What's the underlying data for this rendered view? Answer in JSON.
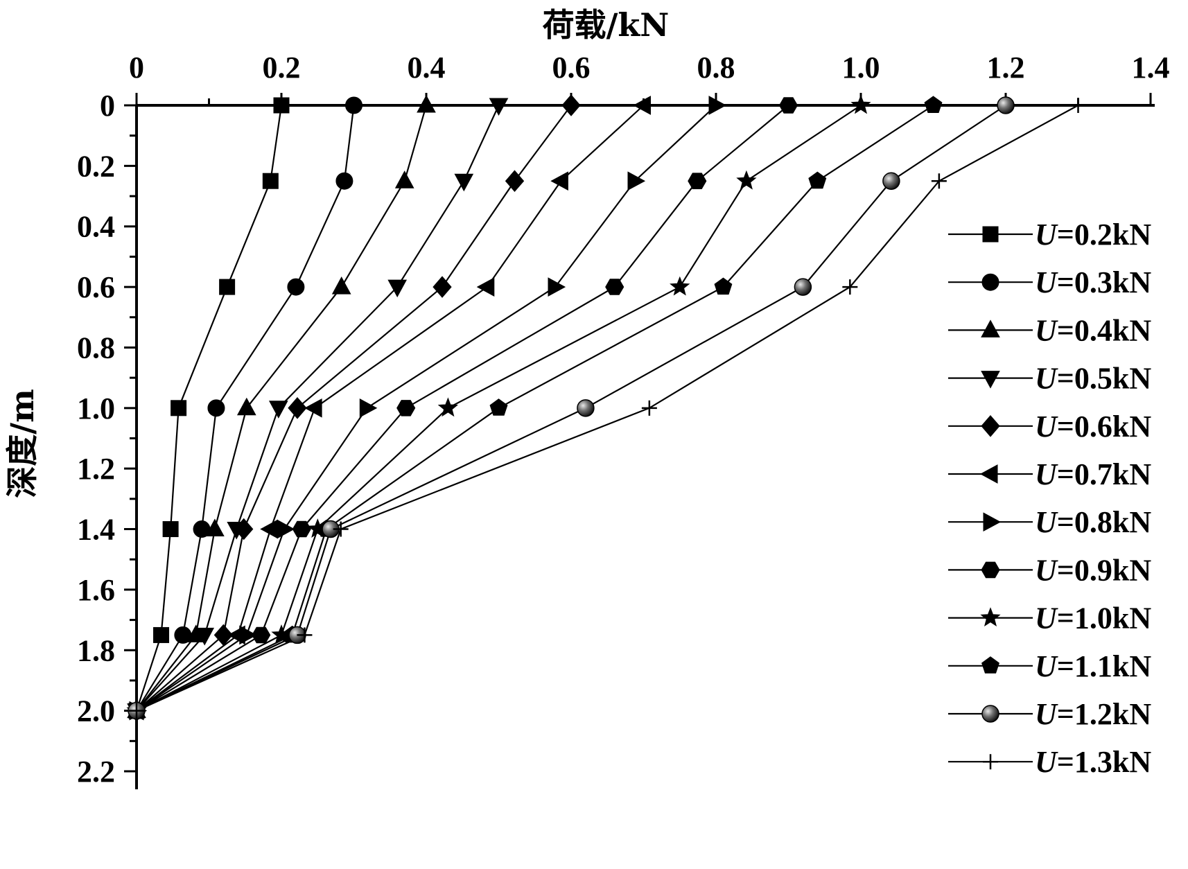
{
  "chart_data": {
    "type": "line",
    "xlabel": "荷载/kN",
    "ylabel": "深度/m",
    "x_axis_position": "top",
    "y_axis_inverted": true,
    "xlim": [
      0,
      1.4
    ],
    "ylim": [
      0,
      2.2
    ],
    "x_ticks": [
      0,
      0.2,
      0.4,
      0.6,
      0.8,
      1.0,
      1.2,
      1.4
    ],
    "x_tick_labels": [
      "0",
      "0.2",
      "0.4",
      "0.6",
      "0.8",
      "1.0",
      "1.2",
      "1.4"
    ],
    "y_ticks": [
      0,
      0.2,
      0.4,
      0.6,
      0.8,
      1.0,
      1.2,
      1.4,
      1.6,
      1.8,
      2.0,
      2.2
    ],
    "y_tick_labels": [
      "0",
      "0.2",
      "0.4",
      "0.6",
      "0.8",
      "1.0",
      "1.2",
      "1.4",
      "1.6",
      "1.8",
      "2.0",
      "2.2"
    ],
    "grid": false,
    "legend_position": "right",
    "depths": [
      0,
      0.25,
      0.6,
      1.0,
      1.4,
      1.75,
      2.0
    ],
    "series": [
      {
        "name_prefix": "U",
        "name_suffix": "=0.2kN",
        "marker": "square",
        "x": [
          0.2,
          0.185,
          0.125,
          0.058,
          0.047,
          0.034,
          0
        ]
      },
      {
        "name_prefix": "U",
        "name_suffix": "=0.3kN",
        "marker": "circle",
        "x": [
          0.3,
          0.287,
          0.22,
          0.11,
          0.09,
          0.064,
          0
        ]
      },
      {
        "name_prefix": "U",
        "name_suffix": "=0.4kN",
        "marker": "triangle-up",
        "x": [
          0.4,
          0.37,
          0.283,
          0.152,
          0.108,
          0.082,
          0
        ]
      },
      {
        "name_prefix": "U",
        "name_suffix": "=0.5kN",
        "marker": "triangle-down",
        "x": [
          0.5,
          0.452,
          0.36,
          0.196,
          0.138,
          0.094,
          0
        ]
      },
      {
        "name_prefix": "U",
        "name_suffix": "=0.6kN",
        "marker": "diamond",
        "x": [
          0.6,
          0.522,
          0.422,
          0.222,
          0.148,
          0.12,
          0
        ]
      },
      {
        "name_prefix": "U",
        "name_suffix": "=0.7kN",
        "marker": "triangle-left",
        "x": [
          0.7,
          0.586,
          0.484,
          0.246,
          0.185,
          0.14,
          0
        ]
      },
      {
        "name_prefix": "U",
        "name_suffix": "=0.8kN",
        "marker": "triangle-right",
        "x": [
          0.8,
          0.688,
          0.578,
          0.318,
          0.204,
          0.152,
          0
        ]
      },
      {
        "name_prefix": "U",
        "name_suffix": "=0.9kN",
        "marker": "hexagon",
        "x": [
          0.9,
          0.774,
          0.66,
          0.372,
          0.228,
          0.172,
          0
        ]
      },
      {
        "name_prefix": "U",
        "name_suffix": "=1.0kN",
        "marker": "star",
        "x": [
          1.0,
          0.842,
          0.75,
          0.43,
          0.25,
          0.2,
          0
        ]
      },
      {
        "name_prefix": "U",
        "name_suffix": "=1.1kN",
        "marker": "pentagon",
        "x": [
          1.1,
          0.94,
          0.81,
          0.5,
          0.262,
          0.215,
          0
        ]
      },
      {
        "name_prefix": "U",
        "name_suffix": "=1.2kN",
        "marker": "sphere",
        "x": [
          1.2,
          1.042,
          0.92,
          0.62,
          0.268,
          0.222,
          0
        ]
      },
      {
        "name_prefix": "U",
        "name_suffix": "=1.3kN",
        "marker": "plus",
        "x": [
          1.3,
          1.108,
          0.985,
          0.708,
          0.282,
          0.232,
          0
        ]
      }
    ]
  }
}
